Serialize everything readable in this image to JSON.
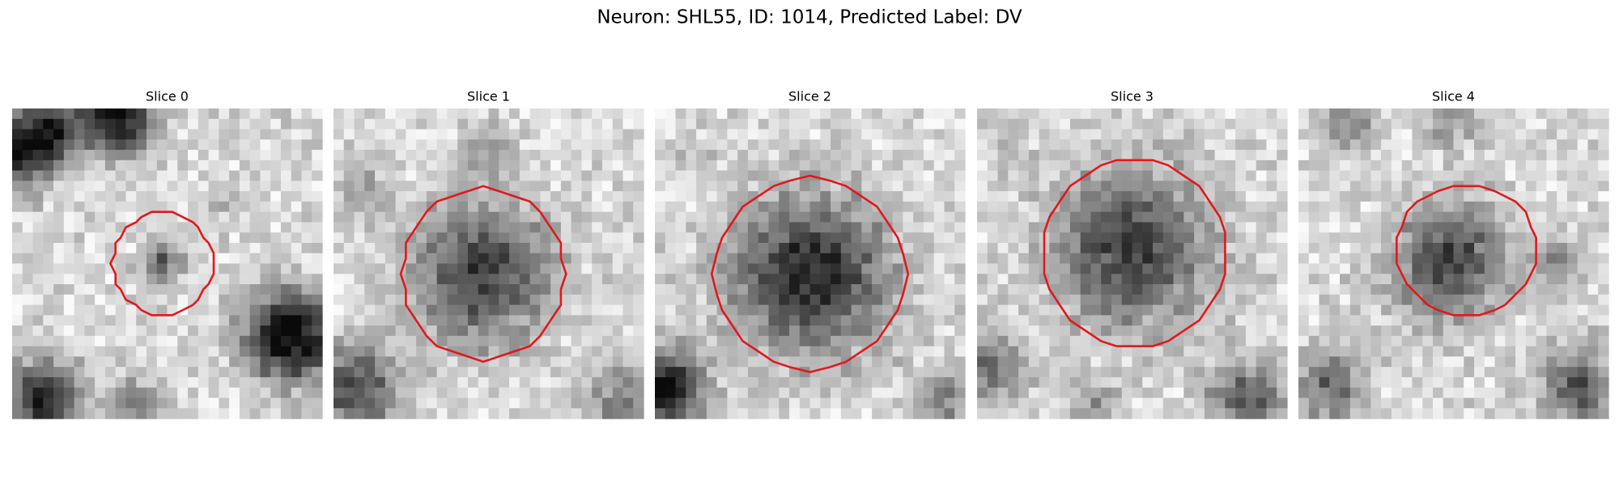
{
  "figure": {
    "title": "Neuron: SHL55, ID: 1014, Predicted Label: DV",
    "panels": [
      {
        "title": "Slice 0"
      },
      {
        "title": "Slice 1"
      },
      {
        "title": "Slice 2"
      },
      {
        "title": "Slice 3"
      },
      {
        "title": "Slice 4"
      }
    ]
  }
}
